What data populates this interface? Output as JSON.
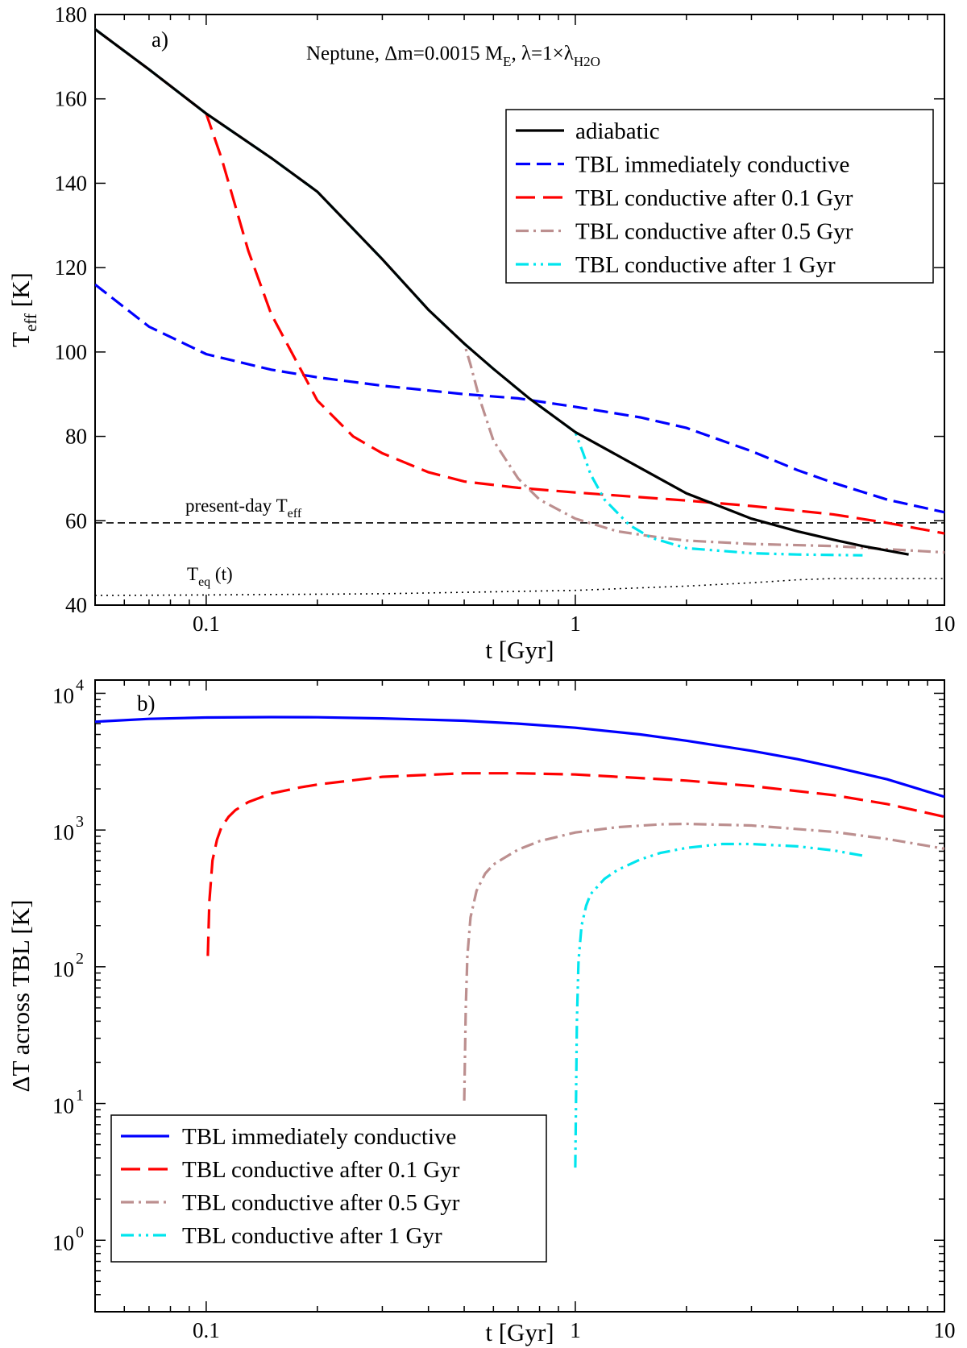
{
  "chart_data": [
    {
      "panel_label": "a)",
      "type": "line",
      "title_parts": {
        "lead": "Neptune, Δm=0.0015 M",
        "m_sub": "E",
        "mid": ", λ=1×λ",
        "lam_sub": "H2O"
      },
      "xlabel": "t [Gyr]",
      "ylabel_main": "T",
      "ylabel_sub": "eff",
      "ylabel_tail": " [K]",
      "xscale": "log",
      "yscale": "linear",
      "xlim": [
        0.05,
        10
      ],
      "ylim": [
        40,
        180
      ],
      "xticks": [
        {
          "v": 0.1,
          "label": "0.1"
        },
        {
          "v": 1,
          "label": "1"
        },
        {
          "v": 10,
          "label": "10"
        }
      ],
      "yticks": [
        {
          "v": 40,
          "label": "40"
        },
        {
          "v": 60,
          "label": "60"
        },
        {
          "v": 80,
          "label": "80"
        },
        {
          "v": 100,
          "label": "100"
        },
        {
          "v": 120,
          "label": "120"
        },
        {
          "v": 140,
          "label": "140"
        },
        {
          "v": 160,
          "label": "160"
        },
        {
          "v": 180,
          "label": "180"
        }
      ],
      "legend_position": "top-right",
      "series": [
        {
          "name": "adiabatic",
          "color": "#000000",
          "dash": "solid",
          "x": [
            0.05,
            0.07,
            0.1,
            0.15,
            0.2,
            0.3,
            0.4,
            0.5,
            0.6,
            0.75,
            1.0,
            1.5,
            2.0,
            2.5,
            3.0,
            4.0,
            5.0,
            6.0,
            8.0
          ],
          "y": [
            176.5,
            167,
            156.5,
            146,
            138,
            122,
            110,
            102,
            96,
            89,
            81,
            72.5,
            66.5,
            63.2,
            60.5,
            57.5,
            55.5,
            54,
            52
          ]
        },
        {
          "name": "TBL immediately conductive",
          "color": "#0000ff",
          "dash": "dash",
          "x": [
            0.05,
            0.07,
            0.1,
            0.15,
            0.2,
            0.3,
            0.5,
            0.7,
            1.0,
            1.5,
            2.0,
            3.0,
            4.0,
            5.0,
            7.0,
            10.0
          ],
          "y": [
            116,
            106,
            99.5,
            95.8,
            94,
            92,
            90,
            89,
            87,
            84.5,
            82,
            76.5,
            72,
            69,
            65,
            62
          ]
        },
        {
          "name": "TBL conductive after 0.1 Gyr",
          "color": "#ff0000",
          "dash": "longdash",
          "x": [
            0.05,
            0.07,
            0.1,
            0.11,
            0.13,
            0.15,
            0.2,
            0.25,
            0.3,
            0.4,
            0.5,
            0.7,
            1.0,
            2.0,
            3.0,
            5.0,
            7.0,
            10.0
          ],
          "y": [
            176.5,
            167,
            156.5,
            146,
            124,
            109,
            88.5,
            80,
            76,
            71.5,
            69.3,
            67.8,
            66.7,
            64.8,
            63.5,
            61.5,
            59.5,
            57
          ]
        },
        {
          "name": "TBL conductive after 0.5 Gyr",
          "color": "#bc8f8f",
          "dash": "dashdot",
          "x": [
            0.05,
            0.07,
            0.1,
            0.15,
            0.2,
            0.3,
            0.4,
            0.5,
            0.52,
            0.55,
            0.6,
            0.7,
            0.8,
            1.0,
            1.3,
            1.7,
            2.0,
            3.0,
            5.0,
            10.0
          ],
          "y": [
            176.5,
            167,
            156.5,
            146,
            138,
            122,
            110,
            102,
            97,
            89,
            79,
            70,
            65,
            60.5,
            57.5,
            56,
            55.3,
            54.5,
            54,
            52.5
          ]
        },
        {
          "name": "TBL conductive after 1 Gyr",
          "color": "#00e5ee",
          "dash": "dashdotdot",
          "x": [
            0.05,
            0.07,
            0.1,
            0.15,
            0.2,
            0.3,
            0.4,
            0.5,
            0.6,
            0.75,
            1.0,
            1.05,
            1.1,
            1.2,
            1.4,
            1.6,
            2.0,
            3.0,
            4.0,
            6.0
          ],
          "y": [
            176.5,
            167,
            156.5,
            146,
            138,
            122,
            110,
            102,
            96,
            89,
            81,
            76,
            71,
            65,
            59,
            56,
            53.5,
            52.3,
            52,
            51.8
          ]
        }
      ],
      "reference_lines": [
        {
          "label_main": "present-day T",
          "label_sub": "eff",
          "style": "dashed",
          "x": [
            0.05,
            10
          ],
          "y": [
            59.5,
            59.5
          ]
        },
        {
          "label_main": "T",
          "label_sub": "eq",
          "label_tail": " (t)",
          "style": "dotted",
          "x": [
            0.05,
            0.1,
            0.3,
            1.0,
            2.0,
            3.0,
            4.0,
            5.0,
            6.0,
            10.0
          ],
          "y": [
            42.3,
            42.4,
            42.7,
            43.5,
            44.5,
            45.3,
            46,
            46.3,
            46.3,
            46.3
          ]
        }
      ]
    },
    {
      "panel_label": "b)",
      "type": "line",
      "xlabel": "t [Gyr]",
      "ylabel": "ΔT across TBL [K]",
      "xscale": "log",
      "yscale": "log",
      "xlim": [
        0.05,
        10
      ],
      "ylim": [
        0.3,
        12500
      ],
      "xticks": [
        {
          "v": 0.1,
          "label": "0.1"
        },
        {
          "v": 1,
          "label": "1"
        },
        {
          "v": 10,
          "label": "10"
        }
      ],
      "yticks": [
        {
          "v": 1,
          "base": "10",
          "exp": "0"
        },
        {
          "v": 10,
          "base": "10",
          "exp": "1"
        },
        {
          "v": 100,
          "base": "10",
          "exp": "2"
        },
        {
          "v": 1000,
          "base": "10",
          "exp": "3"
        },
        {
          "v": 10000,
          "base": "10",
          "exp": "4"
        }
      ],
      "legend_position": "bottom-left",
      "series": [
        {
          "name": "TBL immediately conductive",
          "color": "#0000ff",
          "dash": "solid",
          "x": [
            0.05,
            0.07,
            0.1,
            0.15,
            0.2,
            0.3,
            0.5,
            0.7,
            1.0,
            1.5,
            2.0,
            3.0,
            4.0,
            5.0,
            7.0,
            10.0
          ],
          "y": [
            6200,
            6500,
            6650,
            6700,
            6680,
            6550,
            6300,
            6000,
            5600,
            5000,
            4500,
            3800,
            3300,
            2900,
            2350,
            1750
          ]
        },
        {
          "name": "TBL conductive after 0.1 Gyr",
          "color": "#ff0000",
          "dash": "longdash",
          "x": [
            0.101,
            0.102,
            0.104,
            0.107,
            0.11,
            0.115,
            0.12,
            0.13,
            0.15,
            0.18,
            0.2,
            0.3,
            0.5,
            0.7,
            1.0,
            2.0,
            3.0,
            5.0,
            7.0,
            10.0
          ],
          "y": [
            120,
            300,
            600,
            850,
            1050,
            1250,
            1400,
            1600,
            1850,
            2050,
            2150,
            2450,
            2600,
            2600,
            2550,
            2300,
            2100,
            1800,
            1550,
            1250
          ]
        },
        {
          "name": "TBL conductive after 0.5 Gyr",
          "color": "#bc8f8f",
          "dash": "dashdot",
          "x": [
            0.5,
            0.505,
            0.51,
            0.52,
            0.54,
            0.57,
            0.6,
            0.7,
            0.8,
            1.0,
            1.3,
            1.7,
            2.0,
            3.0,
            5.0,
            7.0,
            10.0
          ],
          "y": [
            10.5,
            50,
            120,
            230,
            360,
            480,
            560,
            720,
            830,
            960,
            1050,
            1100,
            1110,
            1080,
            970,
            860,
            730
          ]
        },
        {
          "name": "TBL conductive after 1 Gyr",
          "color": "#00e5ee",
          "dash": "dashdotdot",
          "x": [
            1.0,
            1.01,
            1.02,
            1.04,
            1.07,
            1.1,
            1.2,
            1.3,
            1.5,
            1.7,
            2.0,
            2.5,
            3.0,
            4.0,
            5.0,
            6.0
          ],
          "y": [
            3.4,
            40,
            110,
            200,
            280,
            340,
            440,
            510,
            610,
            680,
            740,
            790,
            790,
            760,
            710,
            650
          ]
        }
      ]
    }
  ]
}
